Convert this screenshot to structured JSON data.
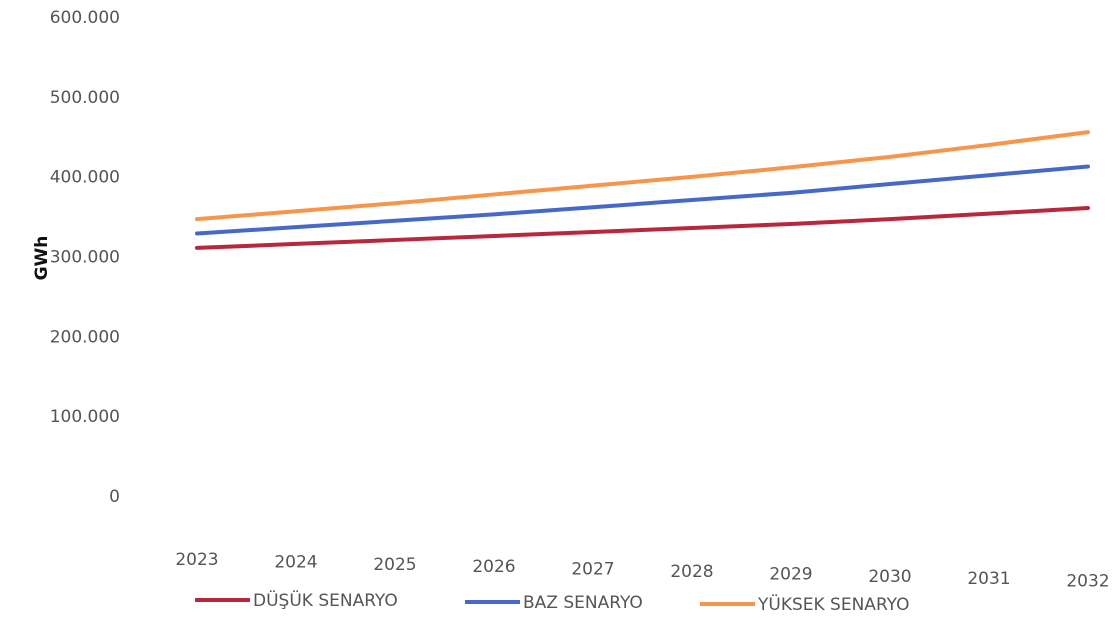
{
  "chart_data": {
    "type": "line",
    "y_label": "GWh",
    "categories": [
      "2023",
      "2024",
      "2025",
      "2026",
      "2027",
      "2028",
      "2029",
      "2030",
      "2031",
      "2032"
    ],
    "series": [
      {
        "name": "DÜŞÜK SENARYO",
        "color": "#b7283c",
        "values": [
          312000,
          317000,
          322000,
          327000,
          332000,
          337000,
          342000,
          348000,
          355000,
          362000
        ]
      },
      {
        "name": "BAZ SENARYO",
        "color": "#4669c9",
        "values": [
          330000,
          338000,
          346000,
          354000,
          363000,
          372000,
          381000,
          392000,
          403000,
          414000
        ]
      },
      {
        "name": "YÜKSEK SENARYO",
        "color": "#f7964a",
        "values": [
          348000,
          358000,
          368000,
          379000,
          390000,
          401000,
          413000,
          426000,
          441000,
          457000
        ]
      }
    ],
    "ylim": [
      0,
      600000
    ],
    "yticks": [
      {
        "value": 0,
        "label": "0"
      },
      {
        "value": 100000,
        "label": "100.000"
      },
      {
        "value": 200000,
        "label": "200.000"
      },
      {
        "value": 300000,
        "label": "300.000"
      },
      {
        "value": 400000,
        "label": "400.000"
      },
      {
        "value": 500000,
        "label": "500.000"
      },
      {
        "value": 600000,
        "label": "600.000"
      }
    ],
    "grid": false,
    "legend": "bottom"
  }
}
